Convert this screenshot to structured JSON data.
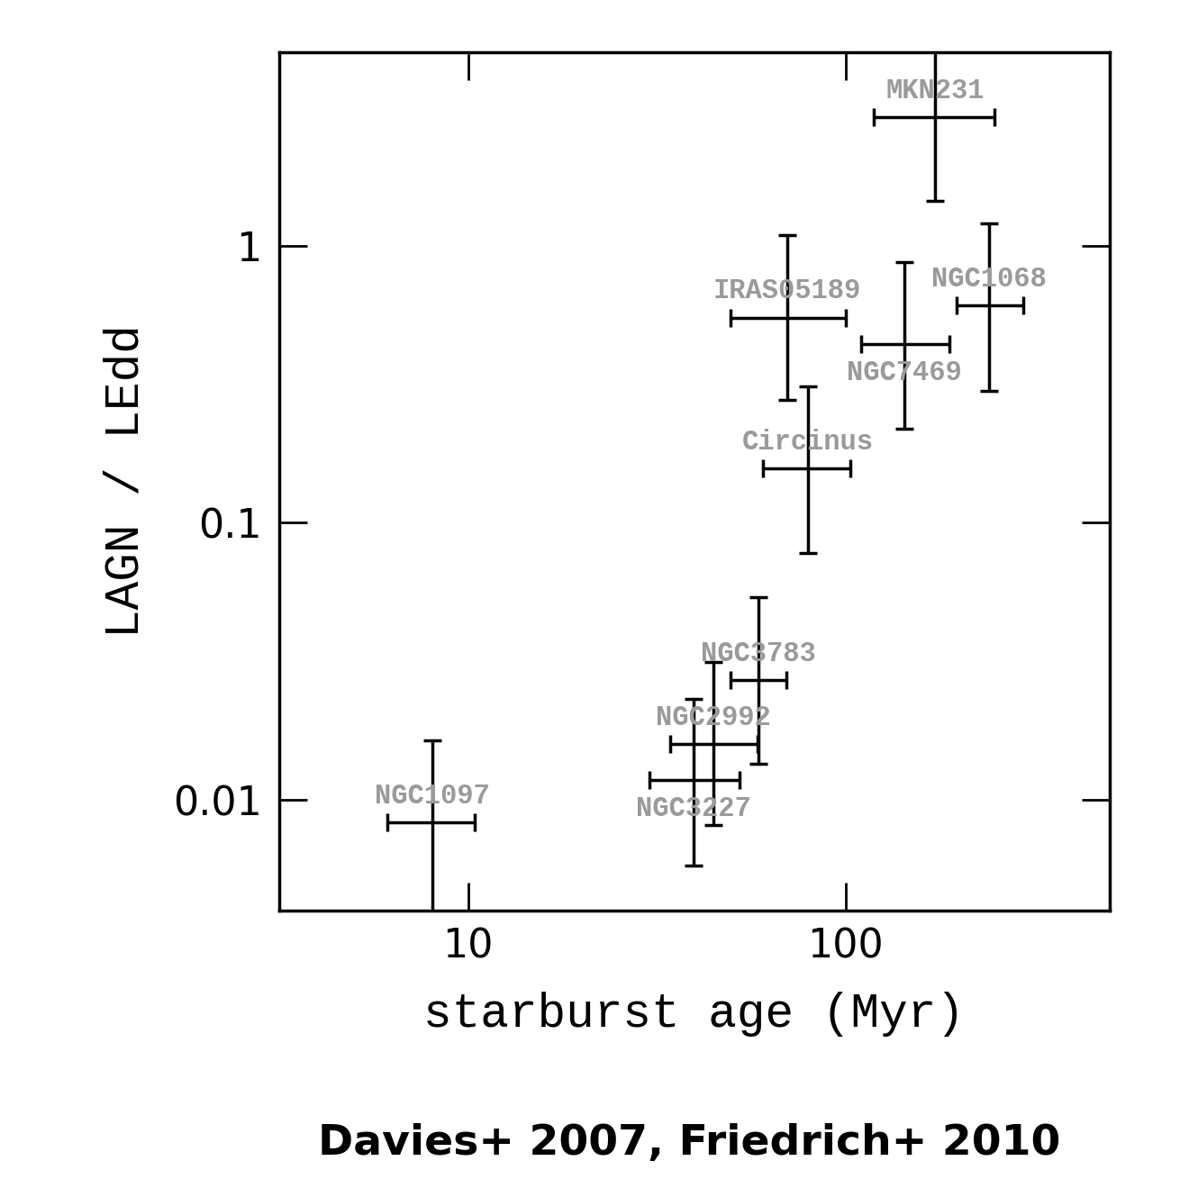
{
  "chart_data": {
    "type": "scatter",
    "xlabel": "starburst age (Myr)",
    "ylabel": "LAGN / LEdd",
    "caption": "Davies+ 2007, Friedrich+ 2010",
    "log": true,
    "grid": false,
    "color": "#000000",
    "marker": "none",
    "xlim": [
      3.16,
      500
    ],
    "ylim": [
      0.004,
      5
    ],
    "xticks": [
      10,
      100
    ],
    "yticks": [
      0.01,
      0.1,
      1
    ],
    "points": [
      {
        "name": "MKN231",
        "x": 173,
        "y": 2.91,
        "x_low": 119,
        "x_high": 248,
        "y_low": 1.45,
        "y_high": 5.5
      },
      {
        "name": "IRAS05189",
        "x": 70,
        "y": 0.55,
        "x_low": 49.5,
        "x_high": 100,
        "y_low": 0.277,
        "y_high": 1.09
      },
      {
        "name": "NGC1068",
        "x": 240,
        "y": 0.61,
        "x_low": 197,
        "x_high": 296,
        "y_low": 0.3,
        "y_high": 1.2
      },
      {
        "name": "NGC7469",
        "x": 143,
        "y": 0.44,
        "x_low": 110,
        "x_high": 188,
        "y_low": 0.218,
        "y_high": 0.87
      },
      {
        "name": "Circinus",
        "x": 79.5,
        "y": 0.157,
        "x_low": 60.5,
        "x_high": 103,
        "y_low": 0.078,
        "y_high": 0.31
      },
      {
        "name": "NGC3783",
        "x": 58.7,
        "y": 0.027,
        "x_low": 49.5,
        "x_high": 69.6,
        "y_low": 0.0135,
        "y_high": 0.054
      },
      {
        "name": "NGC2992",
        "x": 44.7,
        "y": 0.0159,
        "x_low": 34.2,
        "x_high": 58.5,
        "y_low": 0.0081,
        "y_high": 0.0314
      },
      {
        "name": "NGC3227",
        "x": 39.6,
        "y": 0.0118,
        "x_low": 30.3,
        "x_high": 52.4,
        "y_low": 0.0058,
        "y_high": 0.0231
      },
      {
        "name": "NGC1097",
        "x": 8.03,
        "y": 0.0083,
        "x_low": 6.1,
        "x_high": 10.4,
        "y_low": 0.0038,
        "y_high": 0.0164
      }
    ]
  }
}
